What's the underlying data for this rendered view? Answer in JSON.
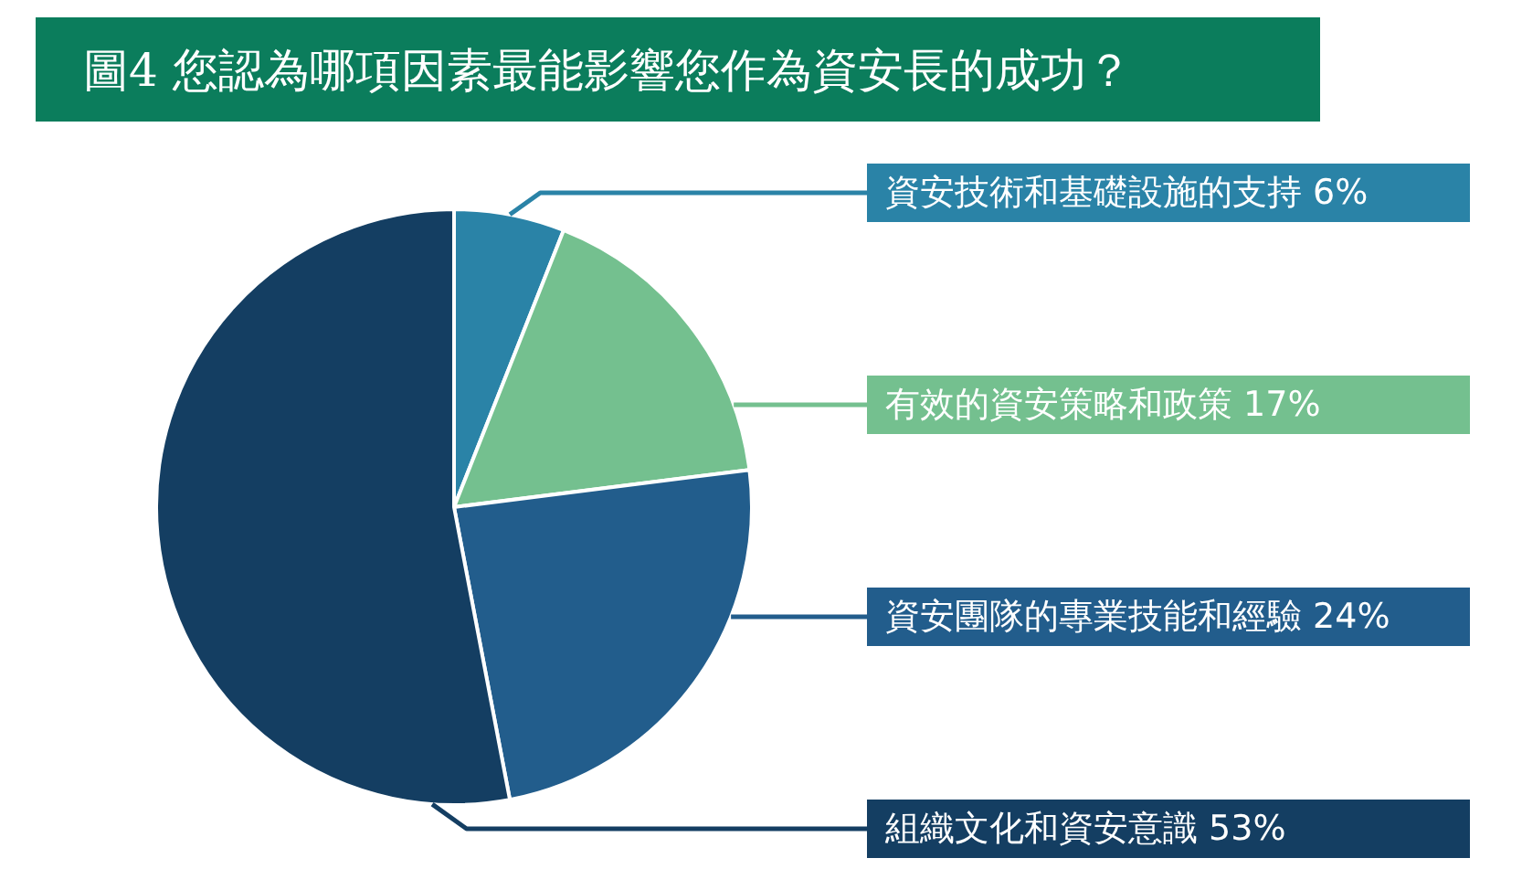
{
  "chart_data": {
    "type": "pie",
    "title": "圖4 您認為哪項因素最能影響您作為資安長的成功？",
    "categories": [
      "資安技術和基礎設施的支持",
      "有效的資安策略和政策",
      "資安團隊的專業技能和經驗",
      "組織文化和資安意識"
    ],
    "values": [
      6,
      17,
      24,
      53
    ],
    "colors": [
      "#2a83a7",
      "#74c08f",
      "#225d8c",
      "#143e62"
    ],
    "value_labels": [
      "6%",
      "17%",
      "24%",
      "53%"
    ]
  }
}
